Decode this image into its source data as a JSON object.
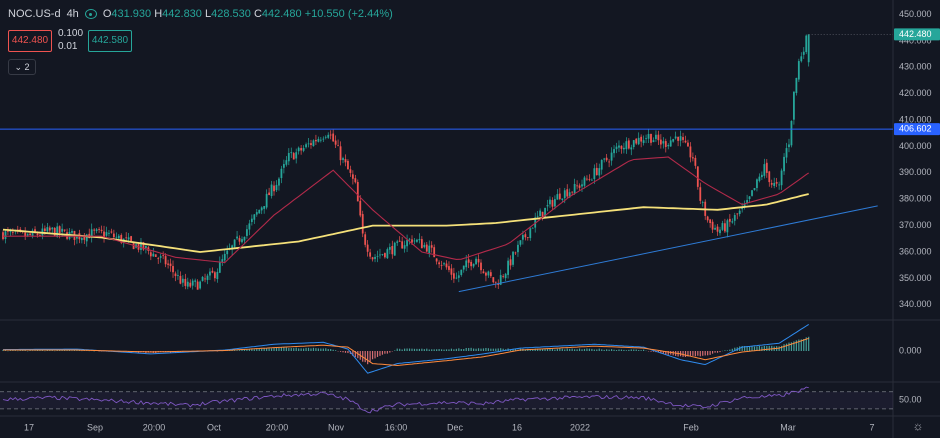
{
  "header": {
    "symbol": "NOC.US-d",
    "timeframe": "4h",
    "open_label": "O",
    "open": "431.930",
    "high_label": "H",
    "high": "442.830",
    "low_label": "L",
    "low": "428.530",
    "close_label": "C",
    "close": "442.480",
    "change": "+10.550 (+2.44%)",
    "bid": "442.480",
    "ask": "442.580",
    "spread_top": "0.100",
    "spread_bottom": "0.01",
    "legend_toggle": "2"
  },
  "colors": {
    "background": "#131722",
    "up": "#26a69a",
    "down": "#ef5350",
    "ma_long": "#f5e17a",
    "ma_short": "#b22a4a",
    "trendline": "#2e7bd6",
    "macd": "#2f8cf0",
    "signal": "#ff8a3c",
    "rsi": "#7e57c2",
    "last_price_tag": "#26a69a",
    "level_tag": "#2962ff"
  },
  "chart_data": [
    {
      "type": "candlestick",
      "title": "",
      "x_labels": [
        "17",
        "Sep",
        "20:00",
        "Oct",
        "20:00",
        "Nov",
        "16:00",
        "Dec",
        "16",
        "2022",
        "Feb",
        "Mar",
        "7"
      ],
      "y_ticks": [
        340,
        350,
        360,
        370,
        380,
        390,
        400,
        410,
        420,
        430,
        440,
        450
      ],
      "ylim": [
        335,
        454
      ],
      "last_price": 442.48,
      "horizontal_level": 406.602,
      "last_price_label": "442.480",
      "level_label": "406.602",
      "anchors": [
        [
          0,
          367
        ],
        [
          10,
          366
        ],
        [
          20,
          368
        ],
        [
          30,
          366
        ],
        [
          36,
          367
        ],
        [
          42,
          367
        ],
        [
          50,
          364
        ],
        [
          58,
          361
        ],
        [
          66,
          356
        ],
        [
          74,
          347
        ],
        [
          80,
          348
        ],
        [
          86,
          352
        ],
        [
          90,
          358
        ],
        [
          95,
          364
        ],
        [
          100,
          370
        ],
        [
          104,
          376
        ],
        [
          108,
          382
        ],
        [
          112,
          388
        ],
        [
          116,
          396
        ],
        [
          120,
          398
        ],
        [
          126,
          402
        ],
        [
          132,
          406
        ],
        [
          134,
          402
        ],
        [
          140,
          391
        ],
        [
          143,
          385
        ],
        [
          146,
          366
        ],
        [
          150,
          358
        ],
        [
          155,
          360
        ],
        [
          160,
          362
        ],
        [
          166,
          365
        ],
        [
          172,
          362
        ],
        [
          178,
          356
        ],
        [
          184,
          350
        ],
        [
          188,
          355
        ],
        [
          192,
          358
        ],
        [
          196,
          352
        ],
        [
          200,
          348
        ],
        [
          204,
          353
        ],
        [
          208,
          360
        ],
        [
          212,
          366
        ],
        [
          216,
          372
        ],
        [
          220,
          376
        ],
        [
          226,
          382
        ],
        [
          232,
          384
        ],
        [
          238,
          388
        ],
        [
          244,
          394
        ],
        [
          250,
          400
        ],
        [
          256,
          402
        ],
        [
          262,
          404
        ],
        [
          268,
          401
        ],
        [
          274,
          404
        ],
        [
          278,
          398
        ],
        [
          280,
          396
        ],
        [
          283,
          380
        ],
        [
          286,
          372
        ],
        [
          290,
          368
        ],
        [
          294,
          370
        ],
        [
          298,
          374
        ],
        [
          302,
          378
        ],
        [
          306,
          386
        ],
        [
          309,
          392
        ],
        [
          312,
          386
        ],
        [
          315,
          384
        ],
        [
          317,
          396
        ],
        [
          319,
          402
        ],
        [
          321,
          420
        ],
        [
          323,
          432
        ],
        [
          325,
          438
        ],
        [
          327,
          442.48
        ]
      ],
      "series": [
        {
          "name": "",
          "kind": "moving-average-long",
          "values": [
            [
              0,
              368.5
            ],
            [
              40,
              365.5
            ],
            [
              80,
              360
            ],
            [
              120,
              364
            ],
            [
              150,
              370
            ],
            [
              180,
              370
            ],
            [
              200,
              371
            ],
            [
              230,
              374
            ],
            [
              260,
              377
            ],
            [
              290,
              376
            ],
            [
              310,
              378
            ],
            [
              327,
              382
            ]
          ]
        },
        {
          "name": "",
          "kind": "moving-average-short",
          "values": [
            [
              0,
              366
            ],
            [
              40,
              366
            ],
            [
              70,
              358
            ],
            [
              90,
              356
            ],
            [
              110,
              374
            ],
            [
              134,
              391
            ],
            [
              150,
              376
            ],
            [
              170,
              360
            ],
            [
              185,
              357
            ],
            [
              205,
              363
            ],
            [
              230,
              381
            ],
            [
              255,
              395
            ],
            [
              270,
              396
            ],
            [
              285,
              386
            ],
            [
              300,
              378
            ],
            [
              315,
              382
            ],
            [
              327,
              390
            ]
          ]
        },
        {
          "name": "",
          "kind": "trendline",
          "values": [
            [
              185,
              345
            ],
            [
              355,
              377.5
            ]
          ]
        }
      ]
    },
    {
      "type": "line",
      "title": "",
      "y_ticks": [
        0
      ],
      "tick_label": "0.000",
      "ylim": [
        -6,
        6
      ],
      "series": [
        {
          "name": "",
          "kind": "macd",
          "values": [
            [
              0,
              0.3
            ],
            [
              30,
              0.4
            ],
            [
              60,
              -0.6
            ],
            [
              90,
              0.2
            ],
            [
              110,
              1.4
            ],
            [
              130,
              1.8
            ],
            [
              140,
              0.4
            ],
            [
              148,
              -4.6
            ],
            [
              160,
              -2.6
            ],
            [
              180,
              -1.6
            ],
            [
              195,
              -0.6
            ],
            [
              210,
              0.6
            ],
            [
              240,
              1.4
            ],
            [
              260,
              0.8
            ],
            [
              275,
              -1.8
            ],
            [
              285,
              -2.8
            ],
            [
              300,
              0.8
            ],
            [
              315,
              1.6
            ],
            [
              327,
              5.5
            ]
          ]
        },
        {
          "name": "",
          "kind": "signal",
          "values": [
            [
              0,
              0.2
            ],
            [
              30,
              0.2
            ],
            [
              60,
              -0.2
            ],
            [
              90,
              0.1
            ],
            [
              110,
              0.7
            ],
            [
              130,
              1.2
            ],
            [
              140,
              0.8
            ],
            [
              150,
              -2.6
            ],
            [
              160,
              -3.0
            ],
            [
              180,
              -2.0
            ],
            [
              195,
              -1.2
            ],
            [
              210,
              0.2
            ],
            [
              240,
              1.0
            ],
            [
              260,
              0.6
            ],
            [
              275,
              -0.6
            ],
            [
              285,
              -1.8
            ],
            [
              300,
              -0.2
            ],
            [
              315,
              0.6
            ],
            [
              327,
              2.6
            ]
          ]
        }
      ]
    },
    {
      "type": "line",
      "title": "",
      "y_ticks": [
        50
      ],
      "tick_label": "50.00",
      "ylim": [
        18,
        88
      ],
      "levels": [
        30,
        70
      ],
      "series": [
        {
          "name": "",
          "kind": "rsi",
          "values": [
            [
              0,
              52
            ],
            [
              20,
              56
            ],
            [
              40,
              50
            ],
            [
              60,
              44
            ],
            [
              75,
              38
            ],
            [
              90,
              48
            ],
            [
              110,
              60
            ],
            [
              130,
              66
            ],
            [
              140,
              52
            ],
            [
              148,
              24
            ],
            [
              160,
              40
            ],
            [
              180,
              45
            ],
            [
              195,
              42
            ],
            [
              210,
              52
            ],
            [
              240,
              58
            ],
            [
              260,
              56
            ],
            [
              275,
              38
            ],
            [
              285,
              34
            ],
            [
              300,
              56
            ],
            [
              315,
              60
            ],
            [
              327,
              78
            ]
          ]
        }
      ]
    }
  ]
}
